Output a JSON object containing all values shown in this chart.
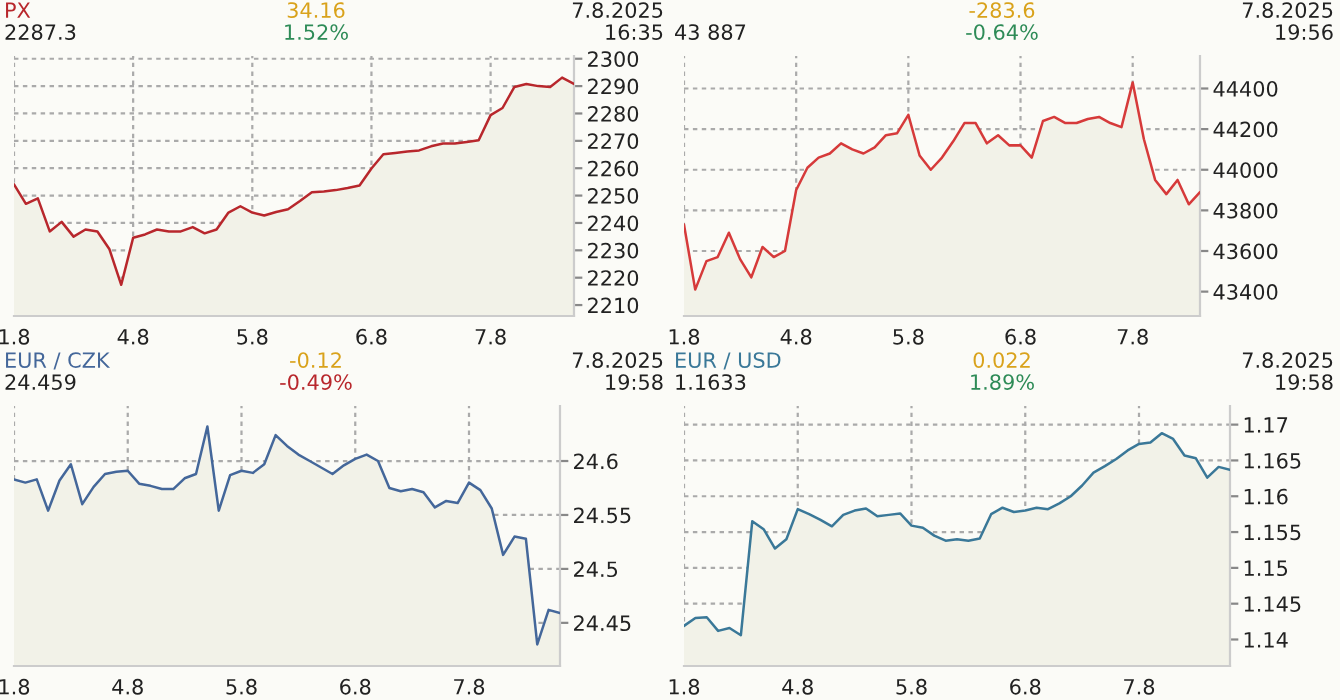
{
  "chart_data": [
    {
      "type": "area",
      "title": "PX",
      "annotations": [
        "2287.3",
        "34.16",
        "1.52%",
        "7.8.2025",
        "16:35"
      ],
      "categories": [
        "1.8",
        null,
        null,
        null,
        null,
        null,
        null,
        null,
        null,
        null,
        "4.8",
        null,
        null,
        null,
        null,
        null,
        null,
        null,
        null,
        null,
        "5.8",
        null,
        null,
        null,
        null,
        null,
        null,
        null,
        null,
        null,
        "6.8",
        null,
        null,
        null,
        null,
        null,
        null,
        null,
        null,
        null,
        "7.8",
        null,
        null,
        null,
        null,
        null,
        null,
        null
      ],
      "series": [
        {
          "color": "#b8272c",
          "values": [
            2254.1,
            2247,
            2249,
            2236.9,
            2240.4,
            2235,
            2237.6,
            2236.9,
            2230.5,
            2217.4,
            2234.6,
            2235.8,
            2237.6,
            2236.9,
            2236.9,
            2238.5,
            2236.2,
            2237.6,
            2243.8,
            2246.1,
            2243.8,
            2242.7,
            2244,
            2245,
            2248,
            2251.2,
            2251.5,
            2252,
            2252.8,
            2253.7,
            2259.9,
            2265.1,
            2265.6,
            2266.1,
            2266.5,
            2268,
            2269,
            2269,
            2269.6,
            2270.2,
            2279.4,
            2282,
            2289.7,
            2290.8,
            2290,
            2289.7,
            2293.1,
            2290.8
          ]
        }
      ],
      "ylim": [
        2206,
        2301
      ],
      "yticks": [
        2210,
        2220,
        2230,
        2240,
        2250,
        2260,
        2270,
        2280,
        2290,
        2300
      ],
      "grid": true
    },
    {
      "type": "area",
      "annotations": [
        "43 887",
        "-283.6",
        "-0.64%",
        "7.8.2025",
        "19:56"
      ],
      "categories": [
        "1.8",
        null,
        null,
        null,
        null,
        null,
        null,
        null,
        null,
        null,
        "4.8",
        null,
        null,
        null,
        null,
        null,
        null,
        null,
        null,
        null,
        "5.8",
        null,
        null,
        null,
        null,
        null,
        null,
        null,
        null,
        null,
        "6.8",
        null,
        null,
        null,
        null,
        null,
        null,
        null,
        null,
        null,
        "7.8",
        null,
        null,
        null,
        null,
        null,
        null
      ],
      "series": [
        {
          "color": "#d63a3a",
          "values": [
            43730,
            43410,
            43550,
            43570,
            43690,
            43560,
            43470,
            43620,
            43570,
            43600,
            43900,
            44010,
            44060,
            44080,
            44130,
            44100,
            44080,
            44110,
            44170,
            44180,
            44270,
            44070,
            44000,
            44060,
            44140,
            44230,
            44230,
            44130,
            44170,
            44120,
            44120,
            44060,
            44240,
            44260,
            44230,
            44230,
            44250,
            44260,
            44230,
            44210,
            44430,
            44150,
            43950,
            43880,
            43950,
            43830,
            43890
          ]
        }
      ],
      "ylim": [
        43280,
        44560
      ],
      "yticks": [
        43400,
        43600,
        43800,
        44000,
        44200,
        44400
      ],
      "grid": true
    },
    {
      "type": "area",
      "title": "EUR / CZK",
      "annotations": [
        "24.459",
        "-0.12",
        "-0.49%",
        "7.8.2025",
        "19:58"
      ],
      "categories": [
        "1.8",
        null,
        null,
        null,
        null,
        null,
        null,
        null,
        null,
        null,
        "4.8",
        null,
        null,
        null,
        null,
        null,
        null,
        null,
        null,
        null,
        "5.8",
        null,
        null,
        null,
        null,
        null,
        null,
        null,
        null,
        null,
        "6.8",
        null,
        null,
        null,
        null,
        null,
        null,
        null,
        null,
        null,
        "7.8",
        null,
        null,
        null,
        null,
        null,
        null,
        null,
        null
      ],
      "series": [
        {
          "color": "#44679a",
          "values": [
            24.583,
            24.58,
            24.583,
            24.554,
            24.582,
            24.597,
            24.56,
            24.576,
            24.588,
            24.59,
            24.591,
            24.579,
            24.577,
            24.574,
            24.574,
            24.584,
            24.588,
            24.632,
            24.554,
            24.587,
            24.591,
            24.589,
            24.597,
            24.624,
            24.614,
            24.606,
            24.6,
            24.594,
            24.588,
            24.596,
            24.602,
            24.606,
            24.6,
            24.575,
            24.572,
            24.574,
            24.571,
            24.557,
            24.563,
            24.561,
            24.58,
            24.573,
            24.556,
            24.513,
            24.53,
            24.528,
            24.43,
            24.462,
            24.459
          ]
        }
      ],
      "ylim": [
        24.41,
        24.651
      ],
      "yticks": [
        24.45,
        24.5,
        24.55,
        24.6
      ],
      "grid": true
    },
    {
      "type": "area",
      "title": "EUR / USD",
      "annotations": [
        "1.1633",
        "0.022",
        "1.89%",
        "7.8.2025",
        "19:58"
      ],
      "categories": [
        "1.8",
        null,
        null,
        null,
        null,
        null,
        null,
        null,
        null,
        null,
        "4.8",
        null,
        null,
        null,
        null,
        null,
        null,
        null,
        null,
        null,
        "5.8",
        null,
        null,
        null,
        null,
        null,
        null,
        null,
        null,
        null,
        "6.8",
        null,
        null,
        null,
        null,
        null,
        null,
        null,
        null,
        null,
        "7.8",
        null,
        null,
        null,
        null,
        null,
        null,
        null,
        null
      ],
      "series": [
        {
          "color": "#3a7898",
          "values": [
            1.1419,
            1.143,
            1.1431,
            1.1412,
            1.1416,
            1.1406,
            1.1565,
            1.1554,
            1.1527,
            1.154,
            1.1582,
            1.1575,
            1.1567,
            1.1558,
            1.1574,
            1.158,
            1.1583,
            1.1572,
            1.1574,
            1.1576,
            1.1559,
            1.1556,
            1.1545,
            1.1538,
            1.154,
            1.1538,
            1.1541,
            1.1575,
            1.1584,
            1.1578,
            1.158,
            1.1584,
            1.1582,
            1.159,
            1.16,
            1.1615,
            1.1633,
            1.1642,
            1.1652,
            1.1664,
            1.1673,
            1.1675,
            1.1688,
            1.168,
            1.1657,
            1.1653,
            1.1626,
            1.1641,
            1.1637
          ]
        }
      ],
      "ylim": [
        1.1363,
        1.1726
      ],
      "yticks": [
        1.14,
        1.145,
        1.15,
        1.155,
        1.16,
        1.165,
        1.17
      ],
      "grid": true
    }
  ]
}
